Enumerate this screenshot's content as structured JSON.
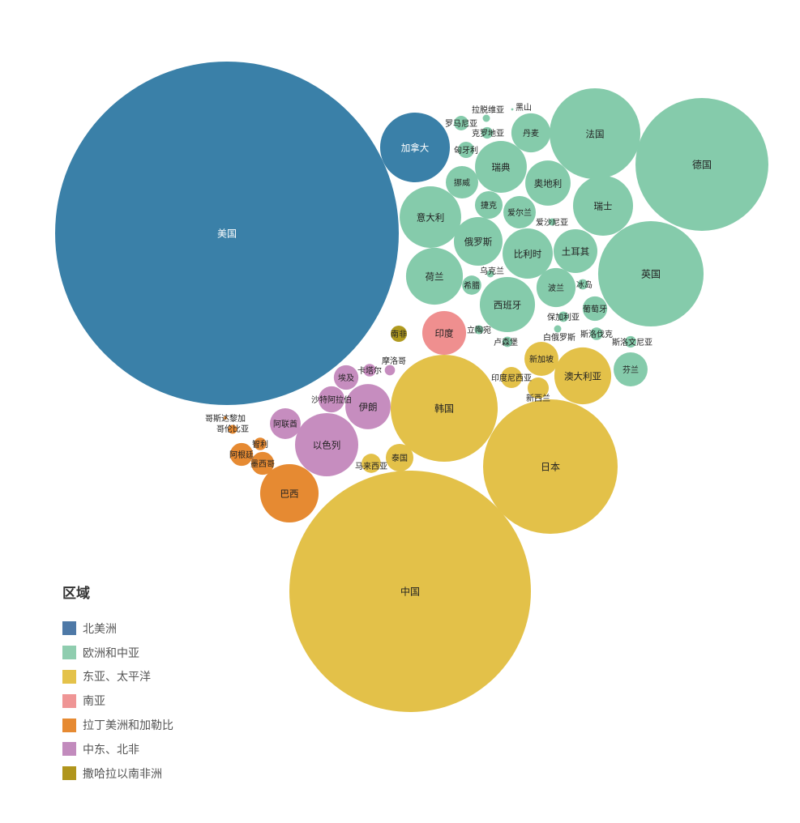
{
  "chart_data": {
    "type": "bubble",
    "title": "",
    "value_units": "relative (bubble area)",
    "legend": {
      "title": "区域",
      "placement": "bottom-left",
      "items": [
        {
          "label": "北美洲",
          "color": "#4e79a7"
        },
        {
          "label": "欧洲和中亚",
          "color": "#8fcdaf"
        },
        {
          "label": "东亚、太平洋",
          "color": "#e4c24a"
        },
        {
          "label": "南亚",
          "color": "#ef9595"
        },
        {
          "label": "拉丁美洲和加勒比",
          "color": "#e68a32"
        },
        {
          "label": "中东、北非",
          "color": "#c28bbd"
        },
        {
          "label": "撒哈拉以南非洲",
          "color": "#b0951c"
        }
      ]
    },
    "region_bubble_colors": {
      "北美洲": "#3a80a8",
      "欧洲和中亚": "#85cbab",
      "东亚、太平洋": "#e3c149",
      "南亚": "#ef8f8f",
      "拉丁美洲和加勒比": "#e68a32",
      "中东、北非": "#c68dbf",
      "撒哈拉以南非洲": "#b09a1f"
    },
    "bubbles": [
      {
        "label": "美国",
        "region": "北美洲",
        "value": 4494
      },
      {
        "label": "加拿大",
        "region": "北美洲",
        "value": 185
      },
      {
        "label": "德国",
        "region": "欧洲和中亚",
        "value": 672
      },
      {
        "label": "法国",
        "region": "欧洲和中亚",
        "value": 314
      },
      {
        "label": "英国",
        "region": "欧洲和中亚",
        "value": 423
      },
      {
        "label": "瑞士",
        "region": "欧洲和中亚",
        "value": 137
      },
      {
        "label": "意大利",
        "region": "欧洲和中亚",
        "value": 144
      },
      {
        "label": "丹麦",
        "region": "欧洲和中亚",
        "value": 58
      },
      {
        "label": "瑞典",
        "region": "欧洲和中亚",
        "value": 102
      },
      {
        "label": "奥地利",
        "region": "欧洲和中亚",
        "value": 78
      },
      {
        "label": "挪威",
        "region": "欧洲和中亚",
        "value": 40
      },
      {
        "label": "俄罗斯",
        "region": "欧洲和中亚",
        "value": 90
      },
      {
        "label": "捷克",
        "region": "欧洲和中亚",
        "value": 29
      },
      {
        "label": "爱尔兰",
        "region": "欧洲和中亚",
        "value": 40
      },
      {
        "label": "爱沙尼亚",
        "region": "欧洲和中亚",
        "value": 2
      },
      {
        "label": "比利时",
        "region": "欧洲和中亚",
        "value": 96
      },
      {
        "label": "土耳其",
        "region": "欧洲和中亚",
        "value": 73
      },
      {
        "label": "荷兰",
        "region": "欧洲和中亚",
        "value": 123
      },
      {
        "label": "乌克兰",
        "region": "欧洲和中亚",
        "value": 2
      },
      {
        "label": "希腊",
        "region": "欧洲和中亚",
        "value": 14
      },
      {
        "label": "西班牙",
        "region": "欧洲和中亚",
        "value": 116
      },
      {
        "label": "波兰",
        "region": "欧洲和中亚",
        "value": 58
      },
      {
        "label": "冰岛",
        "region": "欧洲和中亚",
        "value": 4
      },
      {
        "label": "葡萄牙",
        "region": "欧洲和中亚",
        "value": 23
      },
      {
        "label": "保加利亚",
        "region": "欧洲和中亚",
        "value": 4
      },
      {
        "label": "白俄罗斯",
        "region": "欧洲和中亚",
        "value": 2
      },
      {
        "label": "斯洛伐克",
        "region": "欧洲和中亚",
        "value": 6
      },
      {
        "label": "斯洛文尼亚",
        "region": "欧洲和中亚",
        "value": 5
      },
      {
        "label": "芬兰",
        "region": "欧洲和中亚",
        "value": 44
      },
      {
        "label": "立陶宛",
        "region": "欧洲和中亚",
        "value": 3
      },
      {
        "label": "卢森堡",
        "region": "欧洲和中亚",
        "value": 4
      },
      {
        "label": "罗马尼亚",
        "region": "欧洲和中亚",
        "value": 8
      },
      {
        "label": "克罗地亚",
        "region": "欧洲和中亚",
        "value": 5
      },
      {
        "label": "拉脱维亚",
        "region": "欧洲和中亚",
        "value": 2
      },
      {
        "label": "黑山",
        "region": "欧洲和中亚",
        "value": 0.2
      },
      {
        "label": "匈牙利",
        "region": "欧洲和中亚",
        "value": 10
      },
      {
        "label": "印度",
        "region": "南亚",
        "value": 73
      },
      {
        "label": "南非",
        "region": "撒哈拉以南非洲",
        "value": 10
      },
      {
        "label": "韩国",
        "region": "东亚、太平洋",
        "value": 436
      },
      {
        "label": "日本",
        "region": "东亚、太平洋",
        "value": 689
      },
      {
        "label": "中国",
        "region": "东亚、太平洋",
        "value": 2220
      },
      {
        "label": "澳大利亚",
        "region": "东亚、太平洋",
        "value": 123
      },
      {
        "label": "新加坡",
        "region": "东亚、太平洋",
        "value": 44
      },
      {
        "label": "印度尼西亚",
        "region": "东亚、太平洋",
        "value": 17
      },
      {
        "label": "新西兰",
        "region": "东亚、太平洋",
        "value": 17
      },
      {
        "label": "泰国",
        "region": "东亚、太平洋",
        "value": 29
      },
      {
        "label": "马来西亚",
        "region": "东亚、太平洋",
        "value": 14
      },
      {
        "label": "以色列",
        "region": "中东、北非",
        "value": 152
      },
      {
        "label": "伊朗",
        "region": "中东、北非",
        "value": 78
      },
      {
        "label": "沙特阿拉伯",
        "region": "中东、北非",
        "value": 26
      },
      {
        "label": "埃及",
        "region": "中东、北非",
        "value": 23
      },
      {
        "label": "卡塔尔",
        "region": "中东、北非",
        "value": 6
      },
      {
        "label": "摩洛哥",
        "region": "中东、北非",
        "value": 4
      },
      {
        "label": "阿联酋",
        "region": "中东、北非",
        "value": 36
      },
      {
        "label": "巴西",
        "region": "拉丁美洲和加勒比",
        "value": 130
      },
      {
        "label": "阿根廷",
        "region": "拉丁美洲和加勒比",
        "value": 20
      },
      {
        "label": "墨西哥",
        "region": "拉丁美洲和加勒比",
        "value": 20
      },
      {
        "label": "智利",
        "region": "拉丁美洲和加勒比",
        "value": 6
      },
      {
        "label": "哥伦比亚",
        "region": "拉丁美洲和加勒比",
        "value": 3
      },
      {
        "label": "哥斯达黎加",
        "region": "拉丁美洲和加勒比",
        "value": 0.4
      }
    ]
  }
}
